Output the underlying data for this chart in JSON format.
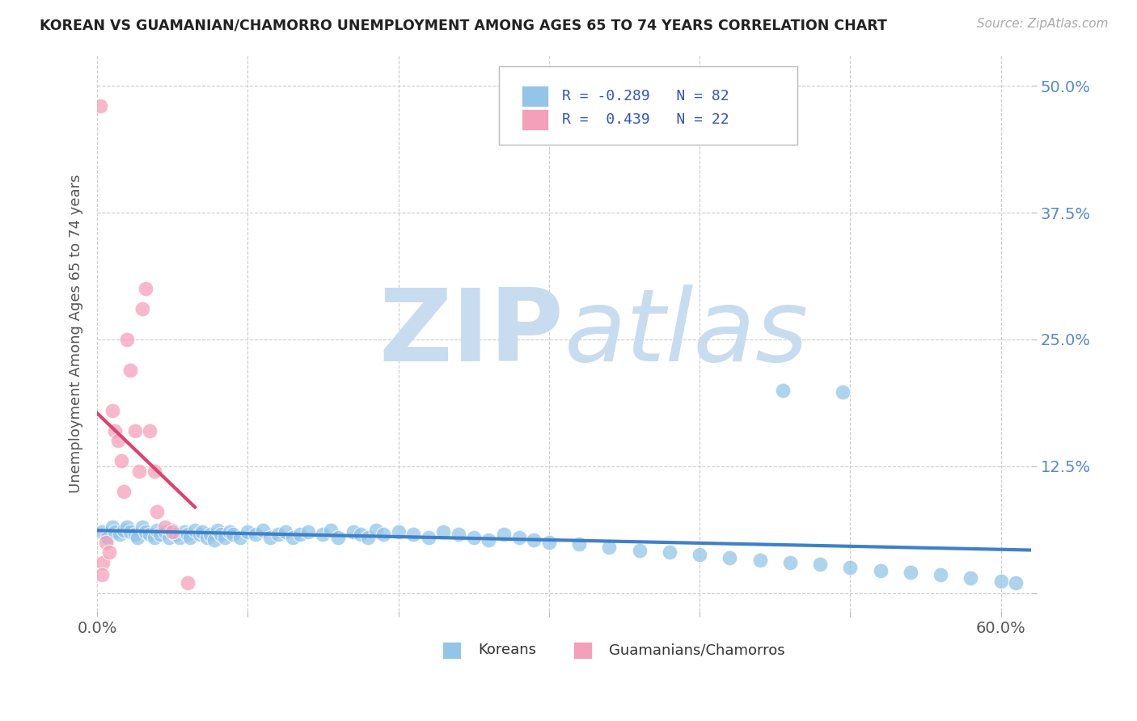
{
  "title": "KOREAN VS GUAMANIAN/CHAMORRO UNEMPLOYMENT AMONG AGES 65 TO 74 YEARS CORRELATION CHART",
  "source_text": "Source: ZipAtlas.com",
  "ylabel": "Unemployment Among Ages 65 to 74 years",
  "xlim": [
    0.0,
    0.62
  ],
  "ylim": [
    -0.018,
    0.53
  ],
  "xticks": [
    0.0,
    0.1,
    0.2,
    0.3,
    0.4,
    0.5,
    0.6
  ],
  "yticks": [
    0.0,
    0.125,
    0.25,
    0.375,
    0.5
  ],
  "ytick_labels": [
    "",
    "12.5%",
    "25.0%",
    "37.5%",
    "50.0%"
  ],
  "korean_R": -0.289,
  "korean_N": 82,
  "guam_R": 0.439,
  "guam_N": 22,
  "korean_dot_color": "#92C5E8",
  "guam_dot_color": "#F5A0BB",
  "korean_line_color": "#4080C8",
  "guam_line_color": "#E04070",
  "watermark_zip": "ZIP",
  "watermark_atlas": "atlas",
  "watermark_color": "#C8DCF0",
  "legend_korean_label": "Koreans",
  "legend_guam_label": "Guamanians/Chamorros",
  "korean_x": [
    0.003,
    0.007,
    0.01,
    0.012,
    0.015,
    0.018,
    0.02,
    0.022,
    0.025,
    0.027,
    0.03,
    0.032,
    0.035,
    0.038,
    0.04,
    0.042,
    0.045,
    0.048,
    0.05,
    0.052,
    0.055,
    0.058,
    0.06,
    0.062,
    0.065,
    0.068,
    0.07,
    0.073,
    0.075,
    0.078,
    0.08,
    0.082,
    0.085,
    0.088,
    0.09,
    0.095,
    0.1,
    0.105,
    0.11,
    0.115,
    0.12,
    0.125,
    0.13,
    0.135,
    0.14,
    0.15,
    0.155,
    0.16,
    0.17,
    0.175,
    0.18,
    0.185,
    0.19,
    0.2,
    0.21,
    0.22,
    0.23,
    0.24,
    0.25,
    0.26,
    0.27,
    0.28,
    0.29,
    0.3,
    0.32,
    0.34,
    0.36,
    0.38,
    0.4,
    0.42,
    0.44,
    0.46,
    0.48,
    0.5,
    0.52,
    0.54,
    0.56,
    0.58,
    0.6,
    0.61,
    0.455,
    0.495
  ],
  "korean_y": [
    0.06,
    0.055,
    0.065,
    0.06,
    0.058,
    0.062,
    0.065,
    0.06,
    0.058,
    0.055,
    0.065,
    0.06,
    0.058,
    0.055,
    0.062,
    0.058,
    0.06,
    0.055,
    0.062,
    0.058,
    0.055,
    0.06,
    0.058,
    0.055,
    0.062,
    0.058,
    0.06,
    0.055,
    0.058,
    0.052,
    0.062,
    0.058,
    0.055,
    0.06,
    0.058,
    0.055,
    0.06,
    0.058,
    0.062,
    0.055,
    0.058,
    0.06,
    0.055,
    0.058,
    0.06,
    0.058,
    0.062,
    0.055,
    0.06,
    0.058,
    0.055,
    0.062,
    0.058,
    0.06,
    0.058,
    0.055,
    0.06,
    0.058,
    0.055,
    0.052,
    0.058,
    0.055,
    0.052,
    0.05,
    0.048,
    0.045,
    0.042,
    0.04,
    0.038,
    0.035,
    0.032,
    0.03,
    0.028,
    0.025,
    0.022,
    0.02,
    0.018,
    0.015,
    0.012,
    0.01,
    0.2,
    0.198
  ],
  "guam_x": [
    0.002,
    0.004,
    0.006,
    0.008,
    0.01,
    0.012,
    0.014,
    0.016,
    0.018,
    0.02,
    0.022,
    0.025,
    0.028,
    0.03,
    0.032,
    0.035,
    0.038,
    0.04,
    0.045,
    0.05,
    0.06,
    0.003
  ],
  "guam_y": [
    0.48,
    0.03,
    0.05,
    0.04,
    0.18,
    0.16,
    0.15,
    0.13,
    0.1,
    0.25,
    0.22,
    0.16,
    0.12,
    0.28,
    0.3,
    0.16,
    0.12,
    0.08,
    0.065,
    0.06,
    0.01,
    0.018
  ]
}
